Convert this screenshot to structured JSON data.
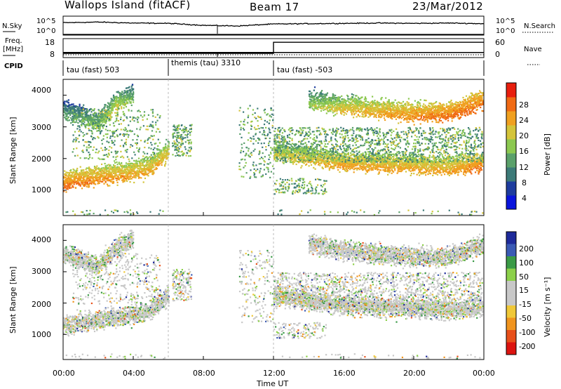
{
  "header": {
    "title": "Wallops Island (fitACF)",
    "beam": "Beam 17",
    "date": "23/Mar/2012"
  },
  "left_labels": {
    "nsky": "N.Sky",
    "freq_line1": "Freq.",
    "freq_line2": "[MHz]",
    "cpid": "CPID"
  },
  "right_labels": {
    "nsearch": "N.Search",
    "nave": "Nave"
  },
  "noise_panel": {
    "left_ticks": [
      "10^5",
      "10^0"
    ],
    "right_ticks": [
      "10^5",
      "10^0"
    ]
  },
  "freq_panel": {
    "left_ticks": [
      "18",
      "8"
    ],
    "right_ticks": [
      "60",
      "0"
    ]
  },
  "cpid_segments": [
    {
      "label": "tau (fast) 503",
      "start_hour": 0
    },
    {
      "label": "themis (tau) 3310",
      "start_hour": 6
    },
    {
      "label": "tau (fast) -503",
      "start_hour": 12
    }
  ],
  "x_axis": {
    "label": "Time UT",
    "ticks": [
      "00:00",
      "04:00",
      "08:00",
      "12:00",
      "16:00",
      "20:00",
      "00:00"
    ]
  },
  "power_panel": {
    "ylabel": "Slant Range [km]",
    "yticks": [
      "1000",
      "2000",
      "3000",
      "4000"
    ],
    "colorbar_label": "Power [dB]",
    "colorbar_ticks": [
      "4",
      "8",
      "12",
      "16",
      "20",
      "24",
      "28"
    ],
    "colors": [
      "#0a14dc",
      "#1e3c9e",
      "#3c7a78",
      "#5aa06a",
      "#8cc850",
      "#d4c43a",
      "#f0a020",
      "#f06a14",
      "#e81e0e"
    ]
  },
  "velocity_panel": {
    "ylabel": "Slant Range [km]",
    "yticks": [
      "1000",
      "2000",
      "3000",
      "4000"
    ],
    "colorbar_label": "Velocity [m s⁻¹]",
    "colorbar_ticks": [
      "200",
      "100",
      "50",
      "15",
      "-15",
      "-50",
      "-100",
      "-200"
    ],
    "colors": [
      "#1e2a9a",
      "#3a5ab4",
      "#3a9a46",
      "#8cd04a",
      "#c8c8c8",
      "#c8c8c8",
      "#f0c838",
      "#f0941e",
      "#e8501a",
      "#dc1410"
    ]
  },
  "chart_data": [
    {
      "type": "line",
      "title": "Wallops Island (fitACF)",
      "subtitle": "Beam 17",
      "series": [
        {
          "name": "N.Sky",
          "x_hours": [
            0,
            2,
            4,
            6,
            8,
            8.8,
            10,
            12,
            14,
            16,
            18,
            20,
            22,
            24
          ],
          "log10_values": [
            3.4,
            3.6,
            3.3,
            3.2,
            2.6,
            2.5,
            2.4,
            3.0,
            3.1,
            3.2,
            3.3,
            3.2,
            3.3,
            3.1
          ]
        },
        {
          "name": "N.Search",
          "x_hours": [
            0,
            24
          ],
          "log10_values": [
            0,
            0
          ]
        }
      ],
      "ylim": [
        "10^0",
        "10^5"
      ]
    },
    {
      "type": "line",
      "series": [
        {
          "name": "Freq.",
          "x_hours": [
            0,
            12,
            12,
            24
          ],
          "values": [
            10.5,
            10.5,
            10.5,
            10.5
          ]
        },
        {
          "name": "Nave",
          "x_hours": [
            0,
            12,
            12,
            24
          ],
          "values": [
            12,
            12,
            50,
            50
          ]
        }
      ],
      "ylim_left": [
        8,
        18
      ],
      "ylim_right": [
        0,
        60
      ]
    },
    {
      "type": "heatmap",
      "ylabel": "Slant Range [km]",
      "xlabel": "Time UT",
      "colorbar": "Power [dB]",
      "clim": [
        0,
        32
      ],
      "ylim": [
        200,
        4500
      ],
      "scatter_bands": [
        {
          "x_hours": [
            0,
            2,
            4,
            5,
            6
          ],
          "range_km": [
            1100,
            1300,
            1450,
            1600,
            2100
          ],
          "power_db": [
            28,
            26,
            24,
            24,
            22
          ]
        },
        {
          "x_hours": [
            12,
            14,
            16,
            18,
            20,
            22,
            24
          ],
          "range_km": [
            2100,
            1900,
            1750,
            1700,
            1650,
            1600,
            1700
          ],
          "power_db": [
            20,
            22,
            24,
            24,
            24,
            24,
            28
          ]
        },
        {
          "x_hours": [
            14,
            16,
            18,
            20,
            22,
            24
          ],
          "range_km": [
            3700,
            3500,
            3400,
            3300,
            3300,
            3700
          ],
          "power_db": [
            16,
            22,
            24,
            26,
            28,
            28
          ]
        },
        {
          "x_hours": [
            0,
            1,
            2,
            3,
            4
          ],
          "range_km": [
            3400,
            3200,
            3000,
            3600,
            3900
          ],
          "power_db": [
            12,
            14,
            16,
            20,
            14
          ]
        }
      ]
    },
    {
      "type": "heatmap",
      "ylabel": "Slant Range [km]",
      "xlabel": "Time UT",
      "colorbar": "Velocity [m s⁻¹]",
      "clim": [
        -200,
        200
      ],
      "ylim": [
        200,
        4500
      ],
      "dominant_value_range": [
        -15,
        15
      ]
    }
  ]
}
